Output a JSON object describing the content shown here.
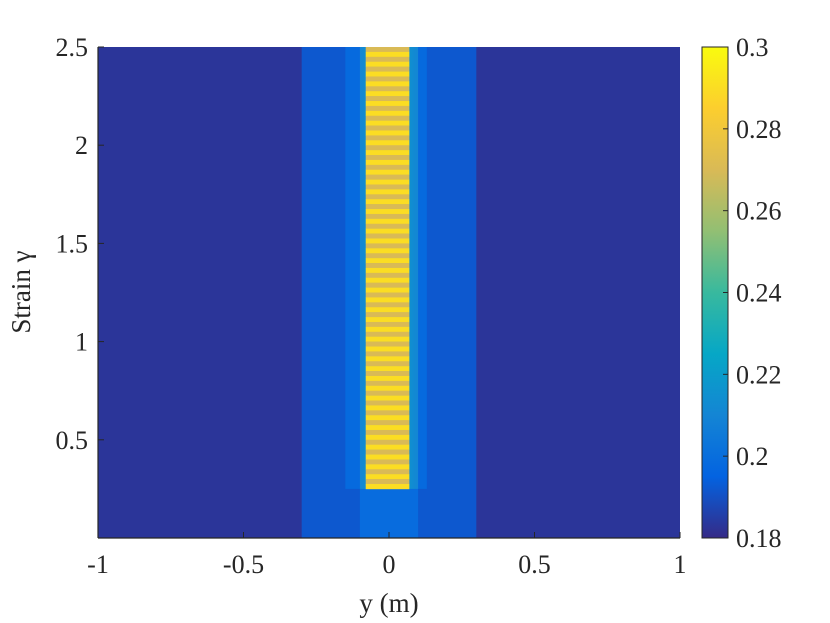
{
  "chart_data": {
    "type": "heatmap",
    "title": "",
    "xlabel": "y (m)",
    "ylabel": "Strain γ",
    "xlim": [
      -1,
      1
    ],
    "ylim": [
      0,
      2.5
    ],
    "x_ticks": [
      -1,
      -0.5,
      0,
      0.5,
      1
    ],
    "x_tick_labels": [
      "-1",
      "-0.5",
      "0",
      "0.5",
      "1"
    ],
    "y_ticks": [
      0.5,
      1,
      1.5,
      2,
      2.5
    ],
    "y_tick_labels": [
      "0.5",
      "1",
      "1.5",
      "2",
      "2.5"
    ],
    "colormap": "parula",
    "colorbar": {
      "range": [
        0.18,
        0.3
      ],
      "ticks": [
        0.18,
        0.2,
        0.22,
        0.24,
        0.26,
        0.28,
        0.3
      ],
      "tick_labels": [
        "0.18",
        "0.2",
        "0.22",
        "0.24",
        "0.26",
        "0.28",
        "0.3"
      ],
      "placement": "right"
    },
    "grid": false,
    "regions": [
      {
        "name": "background",
        "y_range": [
          -1,
          1
        ],
        "strain_range": [
          0,
          2.5
        ],
        "value": 0.183
      },
      {
        "name": "outer band",
        "y_range": [
          -0.3,
          0.3
        ],
        "strain_range": [
          0,
          2.5
        ],
        "value": 0.192
      },
      {
        "name": "core (strain below onset)",
        "y_range": [
          -0.1,
          0.1
        ],
        "strain_range": [
          0,
          0.25
        ],
        "value": 0.199
      },
      {
        "name": "inner band",
        "y_range": [
          -0.15,
          0.13
        ],
        "strain_range": [
          0.25,
          2.5
        ],
        "value": 0.198
      },
      {
        "name": "shear band edge",
        "y_range": [
          -0.1,
          0.1
        ],
        "strain_range": [
          0.25,
          2.5
        ],
        "value": 0.215
      },
      {
        "name": "localized shear band",
        "y_range": [
          -0.08,
          0.07
        ],
        "strain_range": [
          0.25,
          2.5
        ],
        "value_min": 0.27,
        "value_max": 0.29,
        "oscillating": true,
        "stripe_count": 45
      }
    ]
  }
}
